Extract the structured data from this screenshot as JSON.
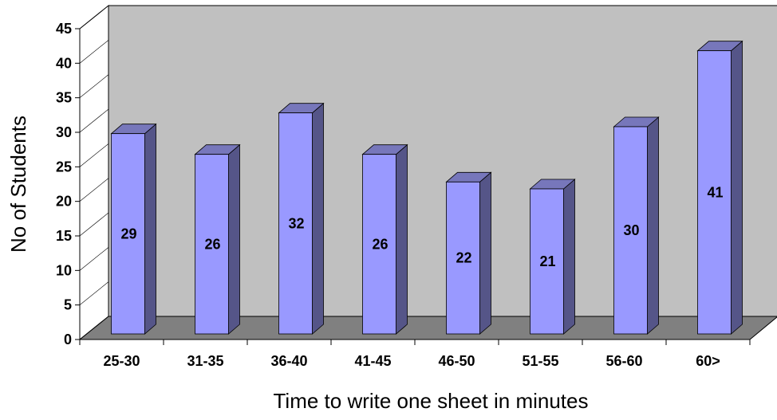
{
  "chart_data": {
    "type": "bar",
    "title": "",
    "xlabel": "Time to write one sheet in minutes",
    "ylabel": "No of Students",
    "categories": [
      "25-30",
      "31-35",
      "36-40",
      "41-45",
      "46-50",
      "51-55",
      "56-60",
      "60>"
    ],
    "values": [
      29,
      26,
      32,
      26,
      22,
      21,
      30,
      41
    ],
    "data_labels": [
      "29",
      "26",
      "32",
      "26",
      "22",
      "21",
      "30",
      "41"
    ],
    "ylim": [
      0,
      45
    ],
    "yticks": [
      0,
      5,
      10,
      15,
      20,
      25,
      30,
      35,
      40,
      45
    ],
    "grid": false,
    "legend": "none",
    "style": "3d-column",
    "colors": {
      "bar_front": "#9999ff",
      "bar_side": "#555588",
      "bar_top": "#7777bb",
      "back_wall": "#c0c0c0",
      "floor": "#808080"
    }
  }
}
